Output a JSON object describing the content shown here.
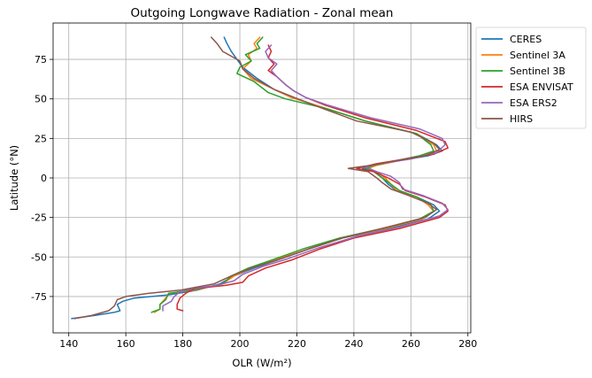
{
  "chart_data": {
    "type": "line",
    "title": "Outgoing Longwave Radiation - Zonal mean",
    "xlabel": "OLR (W/m²)",
    "ylabel": "Latitude (°N)",
    "xlim": [
      134.5,
      281
    ],
    "ylim": [
      -98,
      98
    ],
    "xticks": [
      140,
      160,
      180,
      200,
      220,
      240,
      260,
      280
    ],
    "yticks": [
      -75,
      -50,
      -25,
      0,
      25,
      50,
      75
    ],
    "grid": true,
    "legend": "upper-right-outside",
    "series": [
      {
        "name": "CERES",
        "color": "#1f77b4",
        "points": [
          [
            194.5,
            89
          ],
          [
            195.5,
            85
          ],
          [
            197,
            80
          ],
          [
            199,
            75
          ],
          [
            201,
            70
          ],
          [
            206,
            63
          ],
          [
            212,
            56
          ],
          [
            218,
            51
          ],
          [
            230,
            44
          ],
          [
            244,
            36
          ],
          [
            262,
            28
          ],
          [
            269,
            21
          ],
          [
            271,
            17
          ],
          [
            266,
            14
          ],
          [
            256,
            11
          ],
          [
            248,
            8
          ],
          [
            243,
            6
          ],
          [
            247,
            4
          ],
          [
            250,
            0
          ],
          [
            252,
            -4
          ],
          [
            255,
            -8
          ],
          [
            262,
            -12
          ],
          [
            268,
            -17
          ],
          [
            270,
            -21
          ],
          [
            266,
            -26
          ],
          [
            252,
            -32
          ],
          [
            236,
            -38
          ],
          [
            224,
            -45
          ],
          [
            213,
            -52
          ],
          [
            205,
            -57
          ],
          [
            198,
            -62
          ],
          [
            193,
            -67
          ],
          [
            185,
            -71
          ],
          [
            175,
            -74
          ],
          [
            163,
            -76
          ],
          [
            159,
            -78
          ],
          [
            157,
            -80
          ],
          [
            158,
            -84
          ],
          [
            156,
            -85
          ],
          [
            149,
            -87
          ],
          [
            141,
            -89
          ]
        ]
      },
      {
        "name": "Sentinel 3A",
        "color": "#ff7f0e",
        "points": [
          [
            207,
            89
          ],
          [
            205,
            85
          ],
          [
            206,
            82
          ],
          [
            203,
            78
          ],
          [
            204,
            74
          ],
          [
            201,
            69
          ],
          [
            204,
            63
          ],
          [
            212,
            56
          ],
          [
            218,
            51
          ],
          [
            230,
            44
          ],
          [
            244,
            36
          ],
          [
            262,
            28
          ],
          [
            268,
            21
          ],
          [
            269,
            17
          ],
          [
            264,
            14
          ],
          [
            256,
            11
          ],
          [
            248,
            8
          ],
          [
            245,
            6
          ],
          [
            248,
            4
          ],
          [
            251,
            0
          ],
          [
            253,
            -4
          ],
          [
            255,
            -8
          ],
          [
            262,
            -12
          ],
          [
            266,
            -17
          ],
          [
            268,
            -21
          ],
          [
            264,
            -26
          ],
          [
            251,
            -32
          ],
          [
            236,
            -38
          ],
          [
            224,
            -45
          ],
          [
            212,
            -52
          ],
          [
            204,
            -57
          ],
          [
            198,
            -62
          ],
          [
            194,
            -67
          ],
          [
            184,
            -71
          ],
          [
            175,
            -73
          ],
          [
            174,
            -76
          ],
          [
            172,
            -80
          ],
          [
            172,
            -83
          ],
          [
            170,
            -85
          ]
        ]
      },
      {
        "name": "Sentinel 3B",
        "color": "#2ca02c",
        "points": [
          [
            208,
            89
          ],
          [
            206,
            85
          ],
          [
            207,
            82
          ],
          [
            202,
            78
          ],
          [
            204,
            74
          ],
          [
            200,
            70
          ],
          [
            199,
            66
          ],
          [
            205,
            61
          ],
          [
            210,
            54
          ],
          [
            216,
            50
          ],
          [
            230,
            44
          ],
          [
            244,
            36
          ],
          [
            262,
            28
          ],
          [
            267,
            21
          ],
          [
            268,
            17
          ],
          [
            263,
            14
          ],
          [
            255,
            11
          ],
          [
            247,
            8
          ],
          [
            244,
            6
          ],
          [
            247,
            4
          ],
          [
            250,
            0
          ],
          [
            253,
            -4
          ],
          [
            256,
            -8
          ],
          [
            262,
            -12
          ],
          [
            267,
            -17
          ],
          [
            268,
            -21
          ],
          [
            263,
            -26
          ],
          [
            250,
            -32
          ],
          [
            235,
            -38
          ],
          [
            222,
            -45
          ],
          [
            211,
            -52
          ],
          [
            203,
            -57
          ],
          [
            197,
            -62
          ],
          [
            194,
            -67
          ],
          [
            183,
            -71
          ],
          [
            175,
            -73
          ],
          [
            174,
            -77
          ],
          [
            172,
            -80
          ],
          [
            172,
            -83
          ],
          [
            169,
            -85
          ]
        ]
      },
      {
        "name": "ESA ENVISAT",
        "color": "#d62728",
        "points": [
          [
            210,
            84
          ],
          [
            211,
            80
          ],
          [
            210,
            76
          ],
          [
            212,
            72
          ],
          [
            210,
            68
          ],
          [
            213,
            64
          ],
          [
            216,
            59
          ],
          [
            219,
            55
          ],
          [
            223,
            51
          ],
          [
            230,
            46
          ],
          [
            244,
            38
          ],
          [
            262,
            30
          ],
          [
            272,
            23
          ],
          [
            273,
            19
          ],
          [
            268,
            15
          ],
          [
            258,
            12
          ],
          [
            248,
            9
          ],
          [
            241,
            6
          ],
          [
            247,
            4
          ],
          [
            252,
            0
          ],
          [
            256,
            -4
          ],
          [
            258,
            -8
          ],
          [
            265,
            -12
          ],
          [
            272,
            -17
          ],
          [
            273,
            -21
          ],
          [
            270,
            -25
          ],
          [
            256,
            -32
          ],
          [
            240,
            -38
          ],
          [
            228,
            -45
          ],
          [
            218,
            -52
          ],
          [
            209,
            -57
          ],
          [
            203,
            -62
          ],
          [
            201,
            -66
          ],
          [
            195,
            -68
          ],
          [
            184,
            -70
          ],
          [
            181,
            -73
          ],
          [
            179,
            -76
          ],
          [
            178,
            -80
          ],
          [
            178,
            -83
          ],
          [
            180,
            -84
          ]
        ]
      },
      {
        "name": "ESA ERS2",
        "color": "#9467bd",
        "points": [
          [
            211,
            84
          ],
          [
            209,
            80
          ],
          [
            210,
            76
          ],
          [
            213,
            72
          ],
          [
            211,
            68
          ],
          [
            213,
            64
          ],
          [
            216,
            59
          ],
          [
            219,
            55
          ],
          [
            223,
            51
          ],
          [
            231,
            46
          ],
          [
            246,
            38
          ],
          [
            263,
            31
          ],
          [
            271,
            25
          ],
          [
            272,
            21
          ],
          [
            269,
            16
          ],
          [
            260,
            12
          ],
          [
            249,
            9
          ],
          [
            244,
            7
          ],
          [
            248,
            4
          ],
          [
            253,
            1
          ],
          [
            256,
            -3
          ],
          [
            257,
            -7
          ],
          [
            264,
            -11
          ],
          [
            271,
            -16
          ],
          [
            273,
            -20
          ],
          [
            270,
            -24
          ],
          [
            256,
            -31
          ],
          [
            241,
            -37
          ],
          [
            228,
            -44
          ],
          [
            217,
            -51
          ],
          [
            208,
            -56
          ],
          [
            201,
            -61
          ],
          [
            198,
            -65
          ],
          [
            192,
            -68
          ],
          [
            183,
            -70
          ],
          [
            179,
            -72
          ],
          [
            177,
            -75
          ],
          [
            176,
            -78
          ],
          [
            173,
            -81
          ],
          [
            173,
            -84
          ]
        ]
      },
      {
        "name": "HIRS",
        "color": "#8c564b",
        "points": [
          [
            190,
            89
          ],
          [
            192,
            85
          ],
          [
            194,
            80
          ],
          [
            197,
            77
          ],
          [
            200,
            74
          ],
          [
            201,
            69
          ],
          [
            205,
            63
          ],
          [
            212,
            56
          ],
          [
            219,
            51
          ],
          [
            229,
            44
          ],
          [
            241,
            36
          ],
          [
            260,
            29
          ],
          [
            268,
            22
          ],
          [
            270,
            18
          ],
          [
            265,
            14
          ],
          [
            255,
            11
          ],
          [
            246,
            8
          ],
          [
            238,
            6
          ],
          [
            245,
            4
          ],
          [
            248,
            0
          ],
          [
            250,
            -3
          ],
          [
            253,
            -7
          ],
          [
            259,
            -11
          ],
          [
            266,
            -16
          ],
          [
            269,
            -20
          ],
          [
            265,
            -25
          ],
          [
            252,
            -31
          ],
          [
            236,
            -38
          ],
          [
            224,
            -45
          ],
          [
            213,
            -52
          ],
          [
            204,
            -57
          ],
          [
            197,
            -62
          ],
          [
            191,
            -67
          ],
          [
            179,
            -71
          ],
          [
            168,
            -73
          ],
          [
            160,
            -75
          ],
          [
            157,
            -77
          ],
          [
            156,
            -81
          ],
          [
            154,
            -84
          ],
          [
            148,
            -87
          ],
          [
            142,
            -89
          ]
        ]
      }
    ]
  }
}
